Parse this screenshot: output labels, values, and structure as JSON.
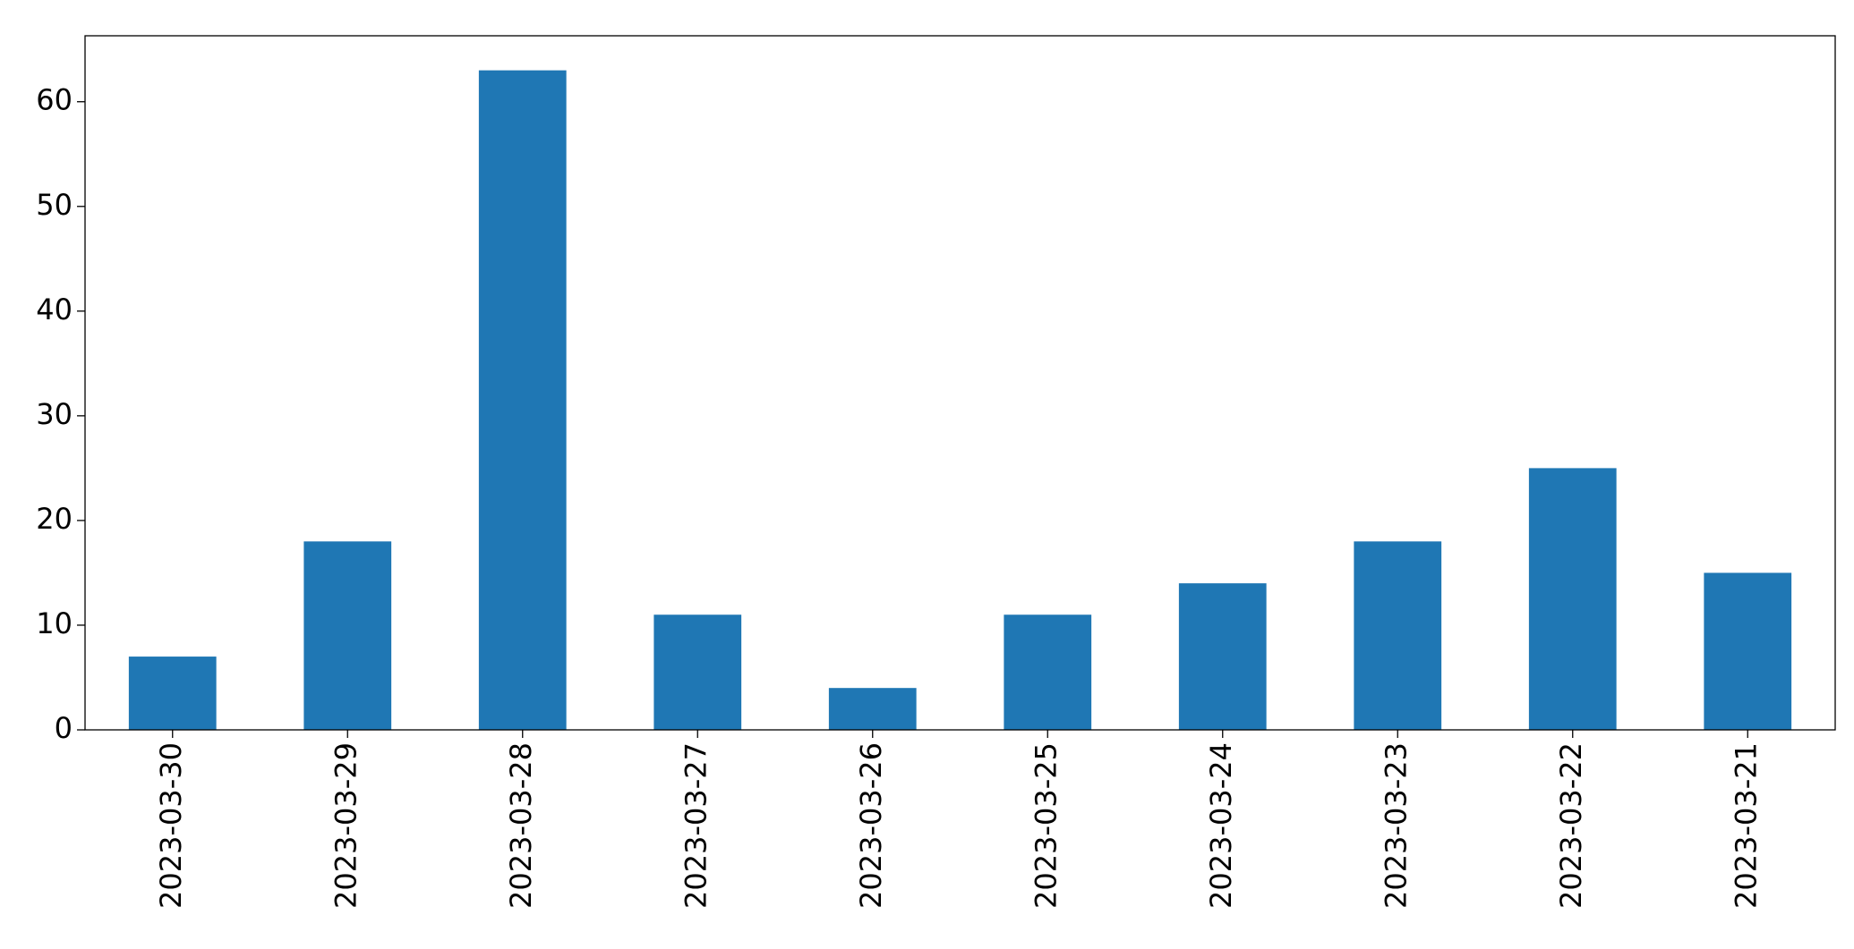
{
  "chart_data": {
    "type": "bar",
    "categories": [
      "2023-03-30",
      "2023-03-29",
      "2023-03-28",
      "2023-03-27",
      "2023-03-26",
      "2023-03-25",
      "2023-03-24",
      "2023-03-23",
      "2023-03-22",
      "2023-03-21"
    ],
    "values": [
      7,
      18,
      63,
      11,
      4,
      11,
      14,
      18,
      25,
      15
    ],
    "color": "#1f77b4",
    "ylim": [
      0,
      66.3
    ],
    "yticks": [
      0,
      10,
      20,
      30,
      40,
      50,
      60
    ],
    "grid": false
  }
}
